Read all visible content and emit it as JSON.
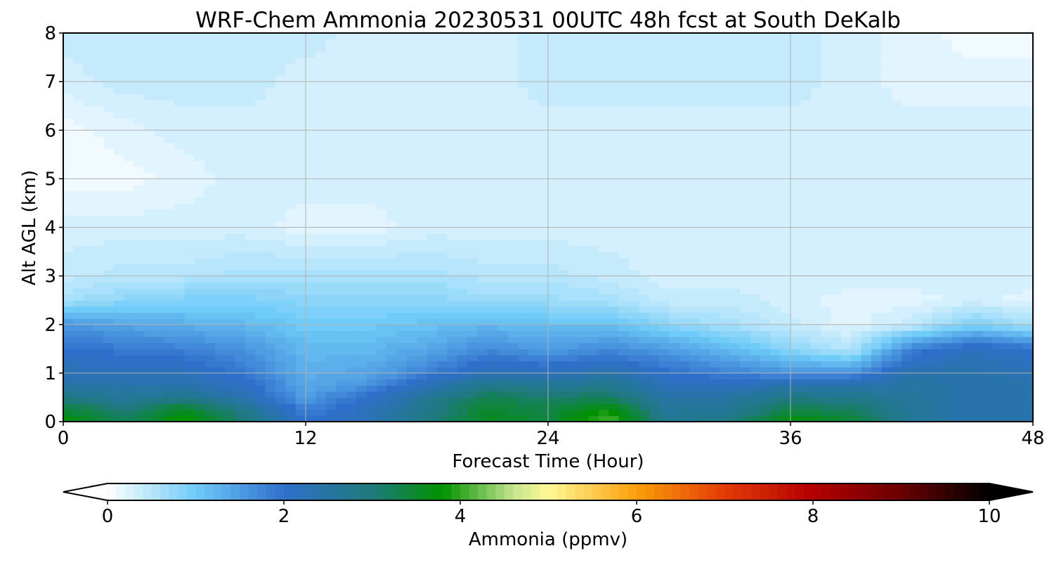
{
  "chart_data": {
    "type": "heatmap",
    "title": "WRF-Chem Ammonia  20230531 00UTC 48h fcst at South DeKalb",
    "xlabel": "Forecast Time (Hour)",
    "ylabel": "Alt AGL (km)",
    "xlim": [
      0,
      48
    ],
    "ylim": [
      0,
      8
    ],
    "x_ticks": [
      0,
      12,
      24,
      36,
      48
    ],
    "y_ticks": [
      0,
      1,
      2,
      3,
      4,
      5,
      6,
      7,
      8
    ],
    "grid": true,
    "units": "ppmv",
    "x": [
      0,
      3,
      6,
      9,
      12,
      15,
      18,
      21,
      24,
      27,
      30,
      33,
      36,
      39,
      42,
      45,
      48
    ],
    "y": [
      0,
      0.25,
      0.5,
      0.75,
      1,
      1.5,
      2,
      2.5,
      3,
      4,
      5,
      6,
      7,
      8
    ],
    "z": [
      [
        3.8,
        3.2,
        3.9,
        3.0,
        2.0,
        2.3,
        2.9,
        3.6,
        3.4,
        4.2,
        2.7,
        2.9,
        3.8,
        3.5,
        2.6,
        2.4,
        2.4
      ],
      [
        3.5,
        3.0,
        3.6,
        2.8,
        1.8,
        2.2,
        2.8,
        3.5,
        3.3,
        3.8,
        2.6,
        2.7,
        3.3,
        3.2,
        2.6,
        2.4,
        2.4
      ],
      [
        2.9,
        2.6,
        2.8,
        2.3,
        1.5,
        2.0,
        2.7,
        3.3,
        3.1,
        3.2,
        2.4,
        2.5,
        2.9,
        2.8,
        2.6,
        2.4,
        2.4
      ],
      [
        2.5,
        2.4,
        2.4,
        2.1,
        1.4,
        1.6,
        2.3,
        2.8,
        2.7,
        2.8,
        2.2,
        2.2,
        2.4,
        2.4,
        2.5,
        2.4,
        2.4
      ],
      [
        2.3,
        2.2,
        2.2,
        1.9,
        1.3,
        1.4,
        1.8,
        2.3,
        2.2,
        2.4,
        2.0,
        1.8,
        1.6,
        1.6,
        2.4,
        2.4,
        2.3
      ],
      [
        2.0,
        1.9,
        1.8,
        1.6,
        1.2,
        1.2,
        1.4,
        1.7,
        1.5,
        1.7,
        1.5,
        1.2,
        0.8,
        0.5,
        1.8,
        2.2,
        2.0
      ],
      [
        1.6,
        1.4,
        1.3,
        1.2,
        1.0,
        1.0,
        1.1,
        1.2,
        1.1,
        1.1,
        0.8,
        0.6,
        0.4,
        0.2,
        0.4,
        0.9,
        0.6
      ],
      [
        0.6,
        0.8,
        0.9,
        0.9,
        0.8,
        0.8,
        0.8,
        0.7,
        0.7,
        0.6,
        0.4,
        0.4,
        0.3,
        0.2,
        0.2,
        0.3,
        0.2
      ],
      [
        0.4,
        0.5,
        0.5,
        0.6,
        0.6,
        0.6,
        0.6,
        0.5,
        0.5,
        0.4,
        0.3,
        0.3,
        0.3,
        0.3,
        0.3,
        0.3,
        0.3
      ],
      [
        0.3,
        0.3,
        0.3,
        0.3,
        0.2,
        0.2,
        0.3,
        0.3,
        0.3,
        0.3,
        0.3,
        0.3,
        0.3,
        0.3,
        0.3,
        0.3,
        0.3
      ],
      [
        0.1,
        0.1,
        0.2,
        0.3,
        0.3,
        0.3,
        0.3,
        0.3,
        0.3,
        0.3,
        0.3,
        0.3,
        0.3,
        0.3,
        0.3,
        0.3,
        0.3
      ],
      [
        0.1,
        0.2,
        0.3,
        0.3,
        0.3,
        0.3,
        0.3,
        0.3,
        0.3,
        0.3,
        0.3,
        0.3,
        0.3,
        0.3,
        0.3,
        0.3,
        0.3
      ],
      [
        0.3,
        0.4,
        0.4,
        0.4,
        0.3,
        0.3,
        0.3,
        0.3,
        0.4,
        0.4,
        0.4,
        0.4,
        0.4,
        0.3,
        0.2,
        0.2,
        0.2
      ],
      [
        0.4,
        0.4,
        0.4,
        0.4,
        0.4,
        0.3,
        0.3,
        0.3,
        0.4,
        0.4,
        0.4,
        0.4,
        0.4,
        0.3,
        0.2,
        0.1,
        0.1
      ]
    ],
    "colorbar": {
      "label": "Ammonia  (ppmv)",
      "min": 0,
      "max": 10,
      "ticks": [
        0,
        2,
        4,
        6,
        8,
        10
      ],
      "extend": "both",
      "stops": [
        {
          "v": 0,
          "c": "#ffffff"
        },
        {
          "v": 1,
          "c": "#6fcbf8"
        },
        {
          "v": 2,
          "c": "#2f6fcc"
        },
        {
          "v": 3,
          "c": "#1e7a7a"
        },
        {
          "v": 3.8,
          "c": "#009100"
        },
        {
          "v": 4.6,
          "c": "#c4e48e"
        },
        {
          "v": 5,
          "c": "#fffa96"
        },
        {
          "v": 6,
          "c": "#fb9e0a"
        },
        {
          "v": 7,
          "c": "#e33a06"
        },
        {
          "v": 8,
          "c": "#b40000"
        },
        {
          "v": 9,
          "c": "#6a0000"
        },
        {
          "v": 10,
          "c": "#000000"
        }
      ],
      "under_color": "#ffffff",
      "over_color": "#000000"
    }
  }
}
